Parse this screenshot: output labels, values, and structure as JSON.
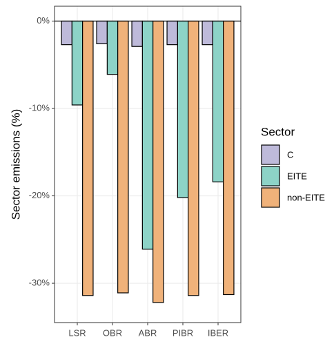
{
  "chart_data": {
    "type": "bar",
    "y_label": "Sector emissions (%)",
    "legend_title": "Sector",
    "categories": [
      "LSR",
      "OBR",
      "ABR",
      "PIBR",
      "IBER"
    ],
    "series": [
      {
        "name": "C",
        "color": "#bebada",
        "values": [
          -2.7,
          -2.6,
          -2.9,
          -2.7,
          -2.7
        ]
      },
      {
        "name": "EITE",
        "color": "#8dd3c7",
        "values": [
          -9.6,
          -6.1,
          -26.1,
          -20.2,
          -18.4
        ]
      },
      {
        "name": "non-EITE",
        "color": "#f0b27a",
        "values": [
          -31.4,
          -31.1,
          -32.2,
          -31.4,
          -31.3
        ]
      }
    ],
    "ylim": [
      -34.5,
      1.7
    ],
    "yticks": [
      {
        "value": 0,
        "label": "0%"
      },
      {
        "value": -10,
        "label": "-10%"
      },
      {
        "value": -20,
        "label": "-20%"
      },
      {
        "value": -30,
        "label": "-30%"
      }
    ],
    "grid": true,
    "legend": "right"
  }
}
